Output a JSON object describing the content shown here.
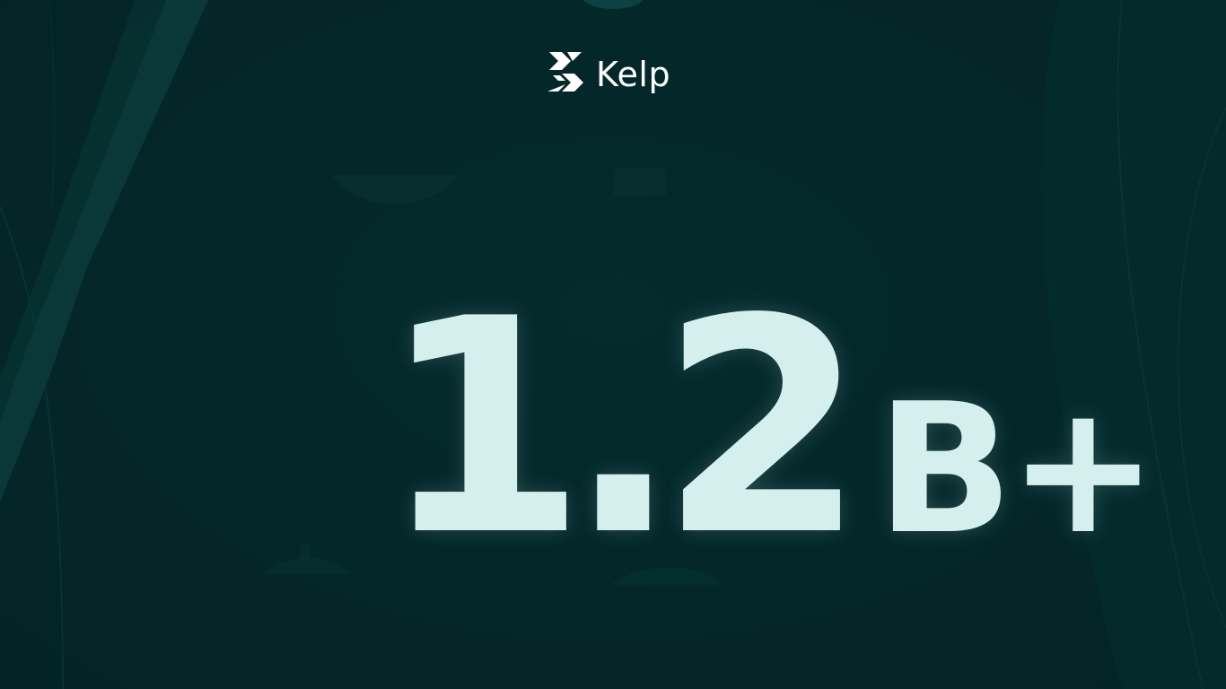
{
  "brand": {
    "name": "Kelp",
    "logo_icon": "kelp-logo-icon"
  },
  "stat": {
    "value": "1.2",
    "suffix": "B+"
  },
  "colors": {
    "background": "#04282a",
    "stat_text": "#d4efee",
    "logo_text": "#ffffff",
    "accent_stripe": "#0f3f40"
  }
}
